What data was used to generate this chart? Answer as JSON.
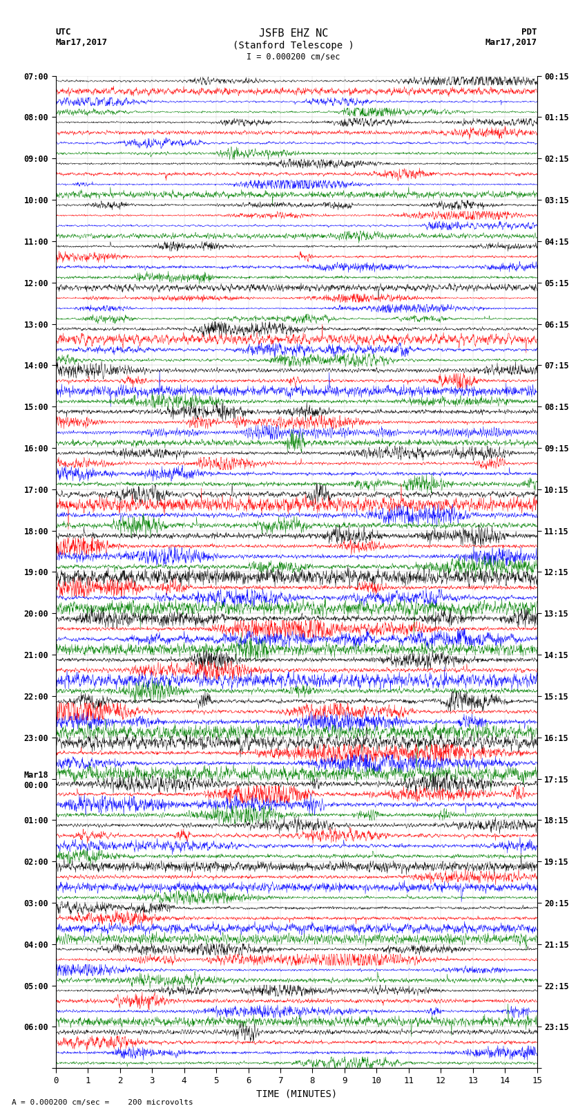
{
  "title_line1": "JSFB EHZ NC",
  "title_line2": "(Stanford Telescope )",
  "scale_label": "I = 0.000200 cm/sec",
  "utc_label_line1": "UTC",
  "utc_label_line2": "Mar17,2017",
  "pdt_label_line1": "PDT",
  "pdt_label_line2": "Mar17,2017",
  "footer_label": "= 0.000200 cm/sec =    200 microvolts",
  "xlabel": "TIME (MINUTES)",
  "left_times": [
    "07:00",
    "08:00",
    "09:00",
    "10:00",
    "11:00",
    "12:00",
    "13:00",
    "14:00",
    "15:00",
    "16:00",
    "17:00",
    "18:00",
    "19:00",
    "20:00",
    "21:00",
    "22:00",
    "23:00",
    "Mar18\n00:00",
    "01:00",
    "02:00",
    "03:00",
    "04:00",
    "05:00",
    "06:00"
  ],
  "right_times": [
    "00:15",
    "01:15",
    "02:15",
    "03:15",
    "04:15",
    "05:15",
    "06:15",
    "07:15",
    "08:15",
    "09:15",
    "10:15",
    "11:15",
    "12:15",
    "13:15",
    "14:15",
    "15:15",
    "16:15",
    "17:15",
    "18:15",
    "19:15",
    "20:15",
    "21:15",
    "22:15",
    "23:15"
  ],
  "colors": [
    "black",
    "red",
    "blue",
    "green"
  ],
  "n_rows": 96,
  "x_min": 0,
  "x_max": 15,
  "bg_color": "white",
  "rows_per_hour": 4,
  "n_hours": 24
}
